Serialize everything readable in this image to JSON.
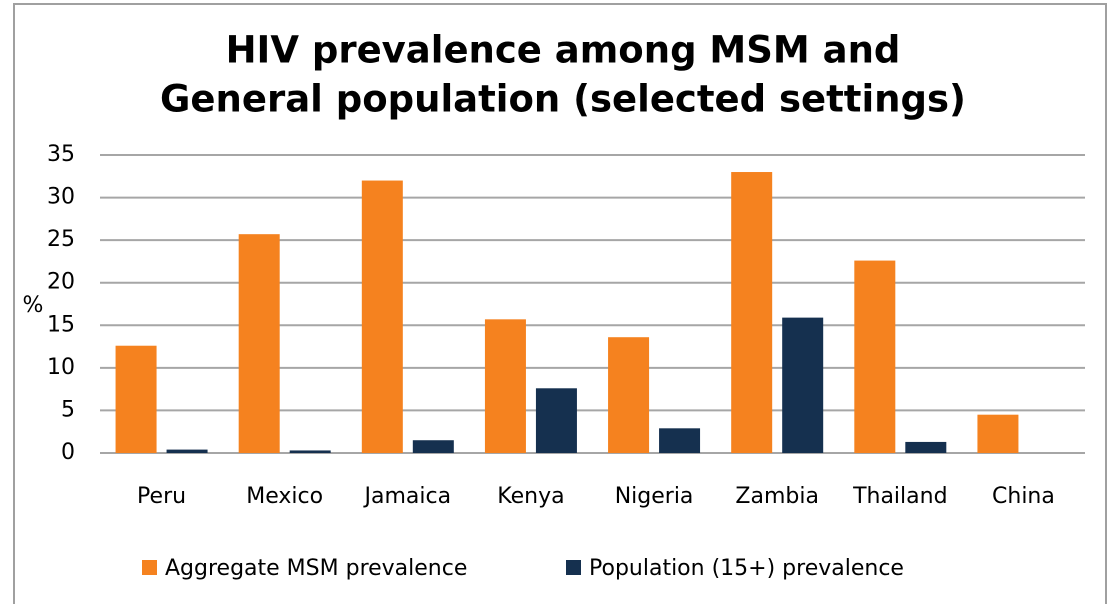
{
  "chart_data": {
    "type": "bar",
    "title": [
      "HIV prevalence among MSM and",
      "General population (selected settings)"
    ],
    "y_label": "%",
    "categories": [
      "Peru",
      "Mexico",
      "Jamaica",
      "Kenya",
      "Nigeria",
      "Zambia",
      "Thailand",
      "China"
    ],
    "series": [
      {
        "name": "Aggregate MSM prevalence",
        "color": "#f5821f",
        "values": [
          12.6,
          25.7,
          32,
          15.7,
          13.6,
          33,
          22.6,
          4.5
        ]
      },
      {
        "name": "Population (15+) prevalence",
        "color": "#15304f",
        "values": [
          0.4,
          0.3,
          1.5,
          7.6,
          2.9,
          15.9,
          1.3,
          null
        ]
      }
    ],
    "ylim": [
      0,
      35
    ],
    "yticks": [
      0,
      5,
      10,
      15,
      20,
      25,
      30,
      35
    ],
    "grid": true,
    "legend": "bottom"
  }
}
